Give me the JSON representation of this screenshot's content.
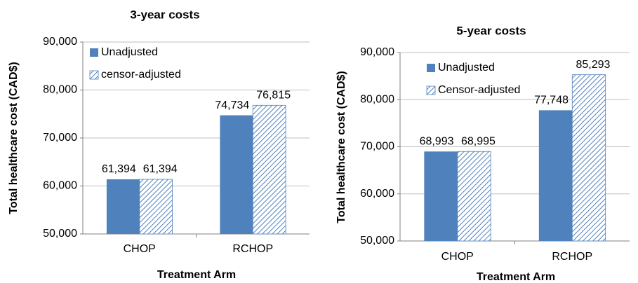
{
  "chart_data": [
    {
      "type": "bar",
      "title": "3-year costs",
      "ylabel": "Total healthcare cost (CAD$)",
      "xlabel": "Treatment Arm",
      "categories": [
        "CHOP",
        "RCHOP"
      ],
      "series": [
        {
          "name": "Unadjusted",
          "color": "#4f81bd",
          "hatch": false,
          "values": [
            61394,
            74734
          ],
          "value_labels": [
            "61,394",
            "74,734"
          ]
        },
        {
          "name": "censor-adjusted",
          "color": "#4f81bd",
          "hatch": true,
          "values": [
            61394,
            76815
          ],
          "value_labels": [
            "61,394",
            "76,815"
          ]
        }
      ],
      "ylim": [
        50000,
        90000
      ],
      "yticks": [
        {
          "value": 50000,
          "label": "50,000"
        },
        {
          "value": 60000,
          "label": "60,000"
        },
        {
          "value": 70000,
          "label": "70,000"
        },
        {
          "value": 80000,
          "label": "80,000"
        },
        {
          "value": 90000,
          "label": "90,000"
        }
      ],
      "grid": true,
      "legend": "upper left"
    },
    {
      "type": "bar",
      "title": "5-year costs",
      "ylabel": "Total healthcare cost (CAD$)",
      "xlabel": "Treatment Arm",
      "categories": [
        "CHOP",
        "RCHOP"
      ],
      "series": [
        {
          "name": "Unadjusted",
          "color": "#4f81bd",
          "hatch": false,
          "values": [
            68993,
            77748
          ],
          "value_labels": [
            "68,993",
            "77,748"
          ]
        },
        {
          "name": "Censor-adjusted",
          "color": "#4f81bd",
          "hatch": true,
          "values": [
            68995,
            85293
          ],
          "value_labels": [
            "68,995",
            "85,293"
          ]
        }
      ],
      "ylim": [
        50000,
        90000
      ],
      "yticks": [
        {
          "value": 50000,
          "label": "50,000"
        },
        {
          "value": 60000,
          "label": "60,000"
        },
        {
          "value": 70000,
          "label": "70,000"
        },
        {
          "value": 80000,
          "label": "80,000"
        },
        {
          "value": 90000,
          "label": "90,000"
        }
      ],
      "grid": true,
      "legend": "upper left"
    }
  ]
}
